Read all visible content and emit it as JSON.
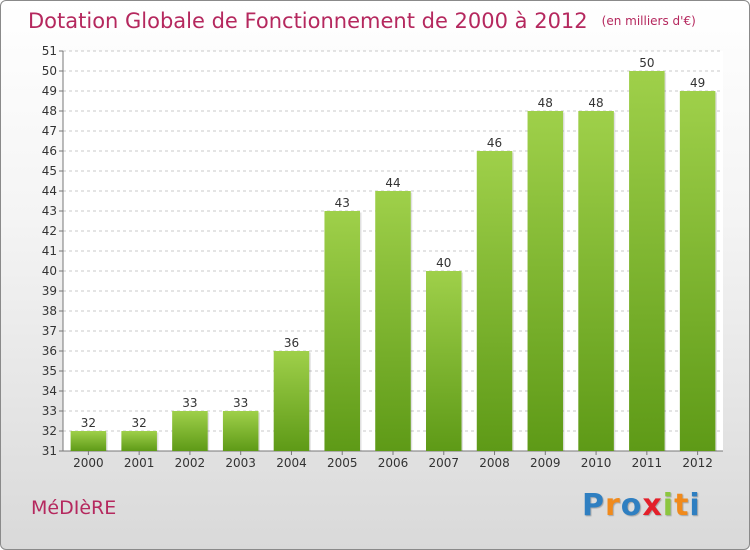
{
  "title": "Dotation Globale de Fonctionnement de 2000 à 2012",
  "subtitle": "(en milliers d'€)",
  "commune": "MéDIèRE",
  "logo": {
    "letters": [
      {
        "char": "P",
        "color": "#2f7fc1"
      },
      {
        "char": "r",
        "color": "#f08a1c"
      },
      {
        "char": "o",
        "color": "#2f7fc1"
      },
      {
        "char": "x",
        "color": "#e3202a"
      },
      {
        "char": "i",
        "color": "#8cc63f"
      },
      {
        "char": "t",
        "color": "#f08a1c"
      },
      {
        "char": "i",
        "color": "#2f7fc1"
      }
    ]
  },
  "chart_data": {
    "type": "bar",
    "categories": [
      "2000",
      "2001",
      "2002",
      "2003",
      "2004",
      "2005",
      "2006",
      "2007",
      "2008",
      "2009",
      "2010",
      "2011",
      "2012"
    ],
    "values": [
      32,
      32,
      33,
      33,
      36,
      43,
      44,
      40,
      46,
      48,
      48,
      50,
      49
    ],
    "title": "Dotation Globale de Fonctionnement de 2000 à 2012",
    "unit": "(en milliers d'€)",
    "ylim": [
      31,
      51
    ],
    "yticks": [
      31,
      32,
      33,
      34,
      35,
      36,
      37,
      38,
      39,
      40,
      41,
      42,
      43,
      44,
      45,
      46,
      47,
      48,
      49,
      50,
      51
    ],
    "grid": "horizontal dashed",
    "bar_color_top": "#9fd04a",
    "bar_color_bottom": "#5e9a17"
  }
}
